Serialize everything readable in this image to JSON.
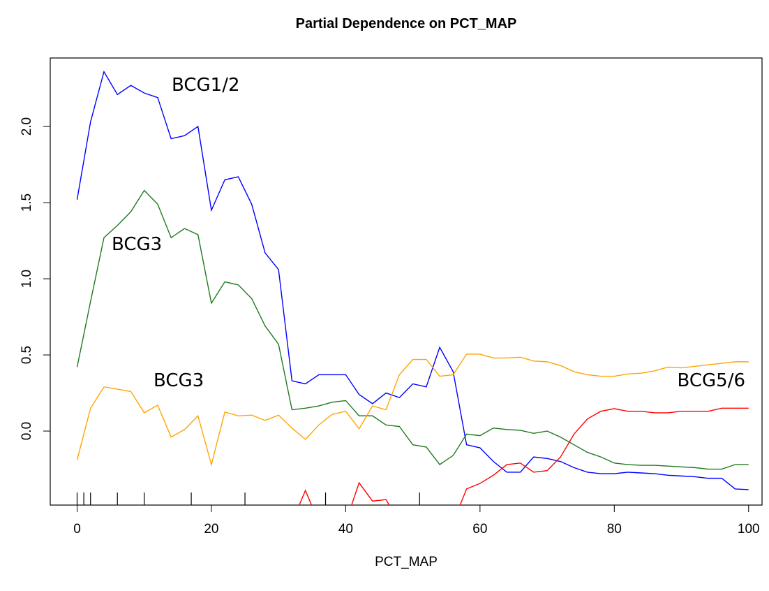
{
  "chart_data": {
    "type": "line",
    "title": "Partial Dependence on PCT_MAP",
    "x_label": "PCT_MAP",
    "x": [
      0,
      2,
      4,
      6,
      8,
      10,
      12,
      14,
      16,
      18,
      20,
      22,
      24,
      26,
      28,
      30,
      32,
      34,
      36,
      38,
      40,
      42,
      44,
      46,
      48,
      50,
      52,
      54,
      56,
      58,
      60,
      62,
      64,
      66,
      68,
      70,
      72,
      74,
      76,
      78,
      80,
      82,
      84,
      86,
      88,
      90,
      92,
      94,
      96,
      98,
      100
    ],
    "series": [
      {
        "color": "#0000ff",
        "values": [
          1.52,
          2.03,
          2.36,
          2.21,
          2.27,
          2.22,
          2.19,
          1.92,
          1.94,
          2.0,
          1.45,
          1.65,
          1.67,
          1.49,
          1.17,
          1.06,
          0.33,
          0.31,
          0.37,
          0.37,
          0.37,
          0.24,
          0.18,
          0.25,
          0.22,
          0.31,
          0.29,
          0.55,
          0.39,
          -0.09,
          -0.11,
          -0.2,
          -0.27,
          -0.27,
          -0.17,
          -0.18,
          -0.2,
          -0.24,
          -0.27,
          -0.28,
          -0.28,
          -0.27,
          -0.275,
          -0.28,
          -0.29,
          -0.295,
          -0.3,
          -0.31,
          -0.31,
          -0.38,
          -0.385
        ]
      },
      {
        "color": "#1f7a1f",
        "values": [
          0.42,
          0.85,
          1.27,
          1.35,
          1.44,
          1.58,
          1.49,
          1.27,
          1.33,
          1.29,
          0.84,
          0.98,
          0.96,
          0.87,
          0.69,
          0.57,
          0.14,
          0.15,
          0.165,
          0.19,
          0.2,
          0.1,
          0.1,
          0.04,
          0.03,
          -0.09,
          -0.105,
          -0.22,
          -0.16,
          -0.02,
          -0.03,
          0.02,
          0.01,
          0.005,
          -0.015,
          0.0,
          -0.04,
          -0.09,
          -0.14,
          -0.17,
          -0.21,
          -0.22,
          -0.225,
          -0.225,
          -0.23,
          -0.235,
          -0.24,
          -0.25,
          -0.25,
          -0.22,
          -0.22
        ]
      },
      {
        "color": "#ffa500",
        "values": [
          -0.19,
          0.15,
          0.29,
          0.275,
          0.26,
          0.12,
          0.17,
          -0.04,
          0.01,
          0.1,
          -0.22,
          0.125,
          0.1,
          0.105,
          0.07,
          0.105,
          0.02,
          -0.055,
          0.04,
          0.11,
          0.13,
          0.015,
          0.165,
          0.14,
          0.37,
          0.47,
          0.47,
          0.36,
          0.37,
          0.505,
          0.505,
          0.48,
          0.48,
          0.485,
          0.46,
          0.455,
          0.43,
          0.39,
          0.37,
          0.36,
          0.36,
          0.375,
          0.38,
          0.395,
          0.42,
          0.415,
          0.425,
          0.435,
          0.445,
          0.455,
          0.455
        ]
      },
      {
        "color": "#ff0000",
        "values": [
          -0.6,
          -0.6,
          -0.6,
          -0.6,
          -0.6,
          -0.6,
          -0.6,
          -0.6,
          -0.6,
          -0.6,
          -0.6,
          -0.6,
          -0.6,
          -0.6,
          -0.6,
          -0.6,
          -0.6,
          -0.39,
          -0.6,
          -0.6,
          -0.6,
          -0.34,
          -0.46,
          -0.45,
          -0.6,
          -0.6,
          -0.6,
          -0.6,
          -0.6,
          -0.38,
          -0.344,
          -0.29,
          -0.22,
          -0.21,
          -0.27,
          -0.26,
          -0.17,
          -0.02,
          0.08,
          0.13,
          0.147,
          0.13,
          0.13,
          0.12,
          0.12,
          0.13,
          0.13,
          0.13,
          0.15,
          0.15,
          0.15
        ]
      }
    ],
    "annotations": [
      {
        "text": "BCG1/2",
        "color": "#1f3864"
      },
      {
        "text": "BCG3",
        "color": "#375623"
      },
      {
        "text": "BCG3",
        "color": "#ed7d31"
      },
      {
        "text": "BCG5/6",
        "color": "#ff0000"
      }
    ],
    "rug": [
      0,
      1,
      2,
      6,
      10,
      17,
      25,
      37,
      51
    ],
    "xlim": [
      -4,
      102
    ],
    "ylim": [
      -0.486,
      2.45
    ],
    "xticks": [
      0,
      20,
      40,
      60,
      80,
      100
    ],
    "yticks": [
      {
        "value": 0,
        "label": "0.0"
      },
      0.5,
      {
        "value": 1,
        "label": "1.0"
      },
      1.5,
      {
        "value": 2,
        "label": "2.0"
      }
    ]
  }
}
